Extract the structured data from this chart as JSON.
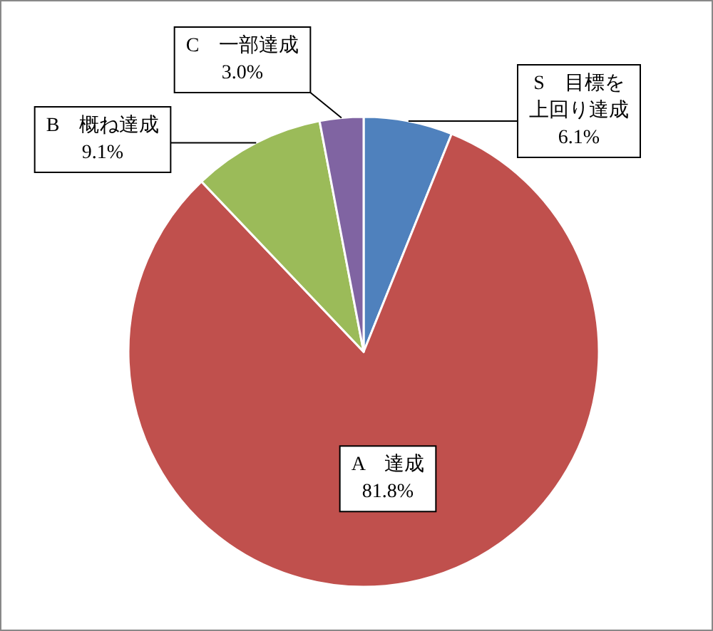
{
  "chart_data": {
    "type": "pie",
    "categories": [
      "S　目標を上回り達成",
      "A　達成",
      "B　概ね達成",
      "C　一部達成"
    ],
    "values": [
      6.1,
      81.8,
      9.1,
      3.0
    ],
    "value_labels": [
      "6.1%",
      "81.8%",
      "9.1%",
      "3.0%"
    ],
    "colors": [
      "#4f81bd",
      "#c0504d",
      "#9bbb59",
      "#8064a2"
    ]
  }
}
